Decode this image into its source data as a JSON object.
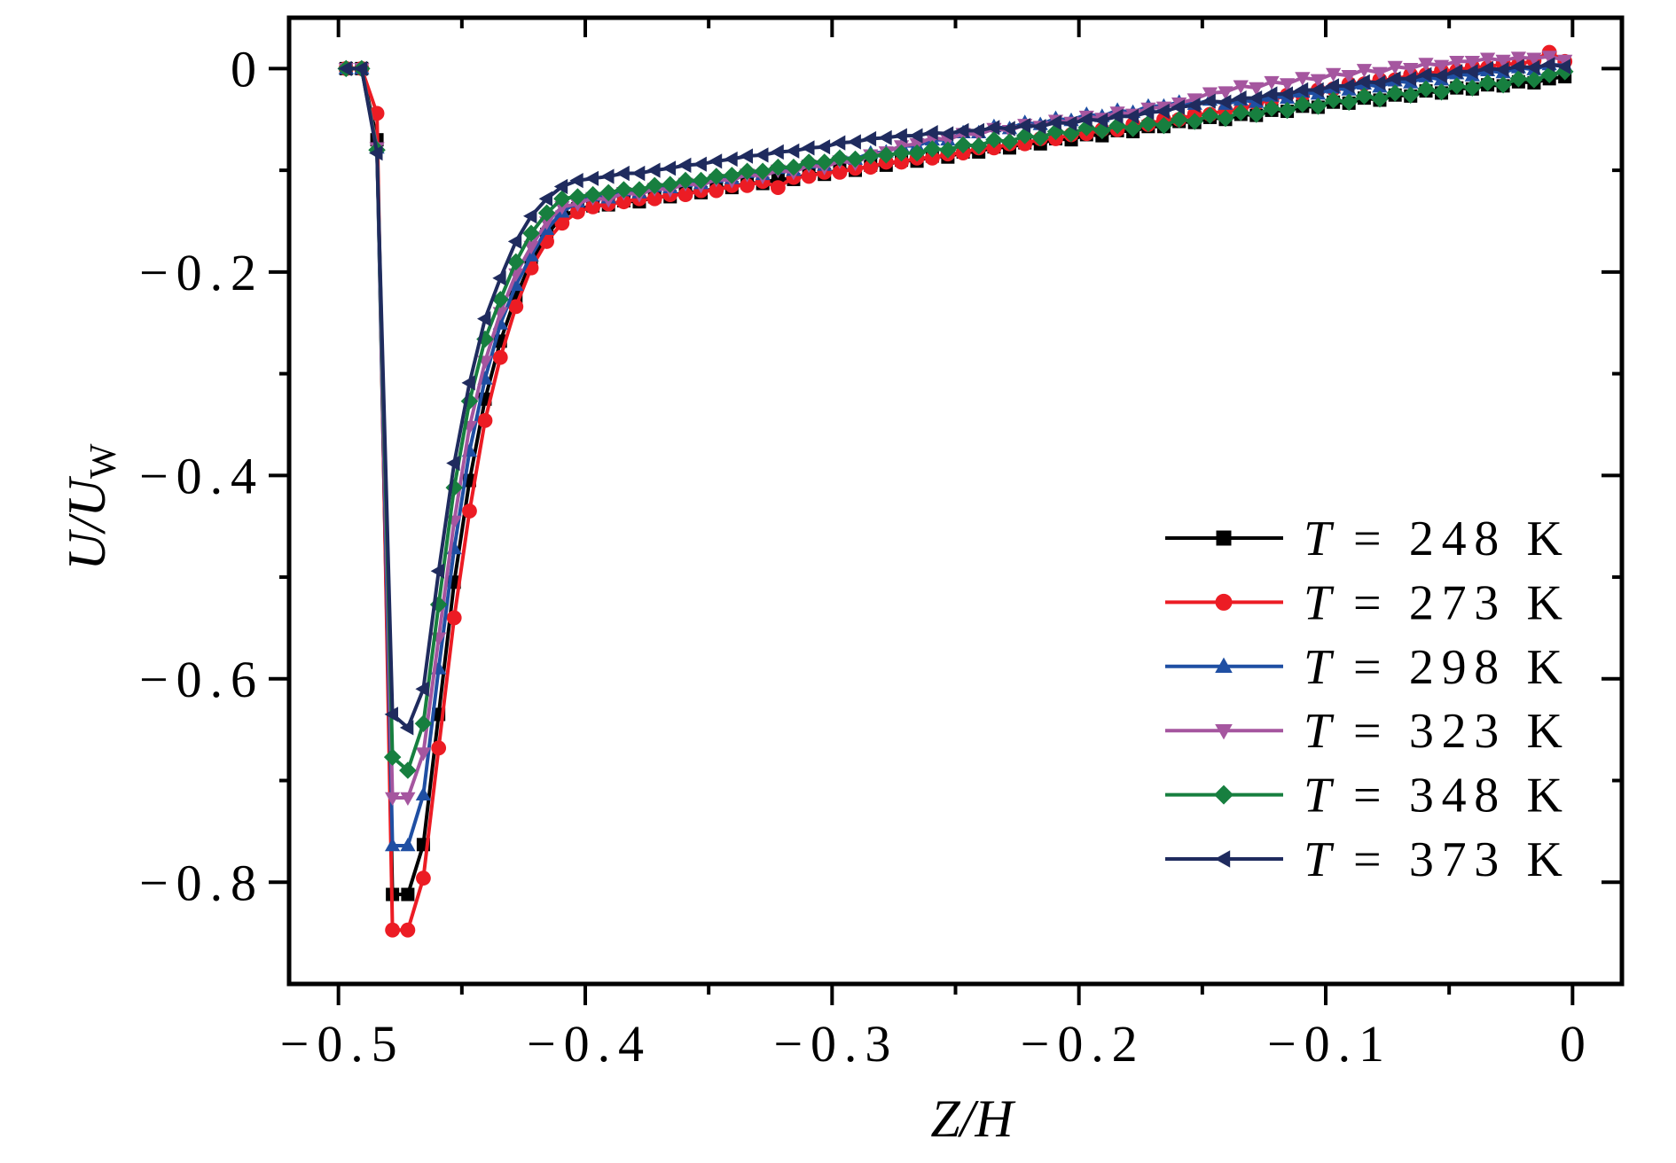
{
  "chart_data": {
    "type": "line",
    "xlabel": "Z/H",
    "ylabel": {
      "main": "U/U",
      "sub": "W"
    },
    "xlim": [
      -0.52,
      0.02
    ],
    "ylim": [
      -0.9,
      0.05
    ],
    "grid": false,
    "legend_position": "right",
    "x_ticks": [
      {
        "value": -0.5,
        "label": "−0.5"
      },
      {
        "value": -0.4,
        "label": "−0.4"
      },
      {
        "value": -0.3,
        "label": "−0.3"
      },
      {
        "value": -0.2,
        "label": "−0.2"
      },
      {
        "value": -0.1,
        "label": "−0.1"
      },
      {
        "value": 0,
        "label": "0"
      }
    ],
    "x_minor_ticks": [
      -0.45,
      -0.35,
      -0.25,
      -0.15,
      -0.05
    ],
    "y_ticks": [
      {
        "value": 0,
        "label": "0"
      },
      {
        "value": -0.2,
        "label": "−0.2"
      },
      {
        "value": -0.4,
        "label": "−0.4"
      },
      {
        "value": -0.6,
        "label": "−0.6"
      },
      {
        "value": -0.8,
        "label": "−0.8"
      }
    ],
    "y_minor_ticks": [
      -0.1,
      -0.3,
      -0.5,
      -0.7
    ],
    "x": [
      -0.4969,
      -0.4906,
      -0.4844,
      -0.4781,
      -0.4719,
      -0.4656,
      -0.4594,
      -0.4531,
      -0.4469,
      -0.4406,
      -0.4344,
      -0.4281,
      -0.4219,
      -0.4156,
      -0.4094,
      -0.4031,
      -0.3969,
      -0.3906,
      -0.3844,
      -0.3781,
      -0.3719,
      -0.3656,
      -0.3594,
      -0.3531,
      -0.3469,
      -0.3406,
      -0.3344,
      -0.3281,
      -0.3219,
      -0.3156,
      -0.3094,
      -0.3031,
      -0.2969,
      -0.2906,
      -0.2844,
      -0.2781,
      -0.2719,
      -0.2656,
      -0.2594,
      -0.2531,
      -0.2469,
      -0.2406,
      -0.2344,
      -0.2281,
      -0.2219,
      -0.2156,
      -0.2094,
      -0.2031,
      -0.1969,
      -0.1906,
      -0.1844,
      -0.1781,
      -0.1719,
      -0.1656,
      -0.1594,
      -0.1531,
      -0.1469,
      -0.1406,
      -0.1344,
      -0.1281,
      -0.1219,
      -0.1156,
      -0.1094,
      -0.1031,
      -0.0969,
      -0.0906,
      -0.0844,
      -0.0781,
      -0.0719,
      -0.0656,
      -0.0594,
      -0.0531,
      -0.0469,
      -0.0406,
      -0.0344,
      -0.0281,
      -0.0219,
      -0.0156,
      -0.0094,
      -0.0031
    ],
    "series": [
      {
        "name_var": "T",
        "name_rest": "= 248 K",
        "color": "#000000",
        "marker": "square",
        "values": [
          0,
          0,
          -0.07,
          -0.812,
          -0.812,
          -0.763,
          -0.635,
          -0.505,
          -0.405,
          -0.325,
          -0.268,
          -0.224,
          -0.19,
          -0.163,
          -0.146,
          -0.138,
          -0.135,
          -0.134,
          -0.13,
          -0.131,
          -0.126,
          -0.126,
          -0.121,
          -0.122,
          -0.117,
          -0.117,
          -0.112,
          -0.113,
          -0.108,
          -0.109,
          -0.103,
          -0.104,
          -0.099,
          -0.1,
          -0.095,
          -0.095,
          -0.09,
          -0.091,
          -0.086,
          -0.087,
          -0.082,
          -0.082,
          -0.077,
          -0.078,
          -0.073,
          -0.074,
          -0.069,
          -0.07,
          -0.065,
          -0.066,
          -0.061,
          -0.062,
          -0.057,
          -0.057,
          -0.052,
          -0.053,
          -0.048,
          -0.05,
          -0.045,
          -0.046,
          -0.041,
          -0.042,
          -0.037,
          -0.038,
          -0.033,
          -0.034,
          -0.029,
          -0.031,
          -0.026,
          -0.027,
          -0.022,
          -0.024,
          -0.019,
          -0.02,
          -0.016,
          -0.017,
          -0.013,
          -0.014,
          -0.01,
          -0.008
        ]
      },
      {
        "name_var": "T",
        "name_rest": "= 273 K",
        "color": "#ec1c24",
        "marker": "circle",
        "values": [
          0,
          0,
          -0.044,
          -0.847,
          -0.847,
          -0.796,
          -0.668,
          -0.54,
          -0.435,
          -0.346,
          -0.284,
          -0.234,
          -0.196,
          -0.17,
          -0.152,
          -0.141,
          -0.136,
          -0.133,
          -0.131,
          -0.128,
          -0.128,
          -0.124,
          -0.124,
          -0.12,
          -0.12,
          -0.115,
          -0.115,
          -0.111,
          -0.117,
          -0.107,
          -0.106,
          -0.102,
          -0.102,
          -0.098,
          -0.097,
          -0.092,
          -0.092,
          -0.088,
          -0.088,
          -0.084,
          -0.083,
          -0.078,
          -0.078,
          -0.074,
          -0.074,
          -0.069,
          -0.069,
          -0.065,
          -0.064,
          -0.06,
          -0.06,
          -0.055,
          -0.055,
          -0.05,
          -0.05,
          -0.045,
          -0.045,
          -0.041,
          -0.041,
          -0.034,
          -0.031,
          -0.026,
          -0.026,
          -0.021,
          -0.02,
          -0.015,
          -0.015,
          -0.011,
          -0.011,
          -0.006,
          -0.006,
          -0.002,
          -0.002,
          0.002,
          0.001,
          0.005,
          0.004,
          0.008,
          0.016,
          0.007
        ]
      },
      {
        "name_var": "T",
        "name_rest": "= 298 K",
        "color": "#1f4fa3",
        "marker": "triangle-up",
        "values": [
          0,
          0,
          -0.078,
          -0.764,
          -0.764,
          -0.714,
          -0.59,
          -0.472,
          -0.376,
          -0.305,
          -0.251,
          -0.213,
          -0.184,
          -0.158,
          -0.141,
          -0.131,
          -0.125,
          -0.127,
          -0.12,
          -0.122,
          -0.116,
          -0.117,
          -0.111,
          -0.113,
          -0.107,
          -0.108,
          -0.102,
          -0.104,
          -0.098,
          -0.1,
          -0.093,
          -0.095,
          -0.087,
          -0.089,
          -0.083,
          -0.082,
          -0.076,
          -0.076,
          -0.07,
          -0.07,
          -0.063,
          -0.063,
          -0.057,
          -0.059,
          -0.053,
          -0.055,
          -0.049,
          -0.051,
          -0.045,
          -0.047,
          -0.041,
          -0.043,
          -0.037,
          -0.037,
          -0.033,
          -0.035,
          -0.031,
          -0.035,
          -0.031,
          -0.033,
          -0.027,
          -0.029,
          -0.023,
          -0.025,
          -0.019,
          -0.021,
          -0.015,
          -0.018,
          -0.012,
          -0.014,
          -0.008,
          -0.011,
          -0.005,
          -0.007,
          -0.002,
          -0.004,
          0.001,
          -0.001,
          0.004,
          0.003
        ]
      },
      {
        "name_var": "T",
        "name_rest": "= 323 K",
        "color": "#a5569f",
        "marker": "triangle-down",
        "values": [
          0,
          0,
          -0.078,
          -0.717,
          -0.717,
          -0.673,
          -0.56,
          -0.445,
          -0.352,
          -0.288,
          -0.24,
          -0.202,
          -0.175,
          -0.151,
          -0.136,
          -0.133,
          -0.127,
          -0.129,
          -0.122,
          -0.124,
          -0.118,
          -0.119,
          -0.113,
          -0.115,
          -0.109,
          -0.11,
          -0.104,
          -0.106,
          -0.1,
          -0.102,
          -0.095,
          -0.097,
          -0.091,
          -0.093,
          -0.085,
          -0.082,
          -0.076,
          -0.074,
          -0.068,
          -0.07,
          -0.064,
          -0.065,
          -0.059,
          -0.061,
          -0.055,
          -0.057,
          -0.051,
          -0.053,
          -0.047,
          -0.049,
          -0.043,
          -0.045,
          -0.039,
          -0.038,
          -0.034,
          -0.03,
          -0.024,
          -0.023,
          -0.017,
          -0.019,
          -0.013,
          -0.015,
          -0.009,
          -0.011,
          -0.005,
          -0.007,
          -0.001,
          -0.004,
          0.002,
          0.0,
          0.005,
          0.003,
          0.007,
          0.007,
          0.01,
          0.008,
          0.011,
          0.01,
          0.012,
          0.008
        ]
      },
      {
        "name_var": "T",
        "name_rest": "= 348 K",
        "color": "#177f3f",
        "marker": "diamond",
        "values": [
          0,
          0,
          -0.08,
          -0.677,
          -0.69,
          -0.644,
          -0.527,
          -0.412,
          -0.327,
          -0.266,
          -0.227,
          -0.19,
          -0.162,
          -0.142,
          -0.128,
          -0.126,
          -0.124,
          -0.122,
          -0.119,
          -0.119,
          -0.115,
          -0.114,
          -0.11,
          -0.11,
          -0.106,
          -0.105,
          -0.101,
          -0.101,
          -0.097,
          -0.097,
          -0.092,
          -0.092,
          -0.088,
          -0.089,
          -0.086,
          -0.085,
          -0.083,
          -0.083,
          -0.079,
          -0.08,
          -0.075,
          -0.076,
          -0.07,
          -0.072,
          -0.066,
          -0.068,
          -0.062,
          -0.064,
          -0.058,
          -0.061,
          -0.056,
          -0.059,
          -0.054,
          -0.056,
          -0.05,
          -0.052,
          -0.046,
          -0.049,
          -0.043,
          -0.045,
          -0.039,
          -0.041,
          -0.035,
          -0.037,
          -0.031,
          -0.033,
          -0.027,
          -0.03,
          -0.024,
          -0.026,
          -0.02,
          -0.023,
          -0.017,
          -0.019,
          -0.014,
          -0.016,
          -0.01,
          -0.011,
          -0.006,
          -0.003
        ]
      },
      {
        "name_var": "T",
        "name_rest": "= 373 K",
        "color": "#1f2b5e",
        "marker": "triangle-left",
        "values": [
          0,
          0,
          -0.083,
          -0.635,
          -0.648,
          -0.61,
          -0.494,
          -0.388,
          -0.309,
          -0.246,
          -0.206,
          -0.17,
          -0.145,
          -0.128,
          -0.116,
          -0.11,
          -0.108,
          -0.106,
          -0.103,
          -0.103,
          -0.1,
          -0.098,
          -0.095,
          -0.094,
          -0.091,
          -0.089,
          -0.086,
          -0.085,
          -0.082,
          -0.081,
          -0.078,
          -0.077,
          -0.073,
          -0.072,
          -0.069,
          -0.068,
          -0.066,
          -0.066,
          -0.063,
          -0.064,
          -0.061,
          -0.061,
          -0.058,
          -0.059,
          -0.056,
          -0.057,
          -0.053,
          -0.054,
          -0.05,
          -0.051,
          -0.047,
          -0.047,
          -0.043,
          -0.042,
          -0.038,
          -0.036,
          -0.032,
          -0.033,
          -0.029,
          -0.029,
          -0.025,
          -0.025,
          -0.021,
          -0.021,
          -0.017,
          -0.017,
          -0.013,
          -0.014,
          -0.01,
          -0.01,
          -0.006,
          -0.007,
          -0.003,
          -0.003,
          0.0,
          -0.001,
          0.002,
          0.001,
          0.004,
          0.002
        ]
      }
    ]
  }
}
